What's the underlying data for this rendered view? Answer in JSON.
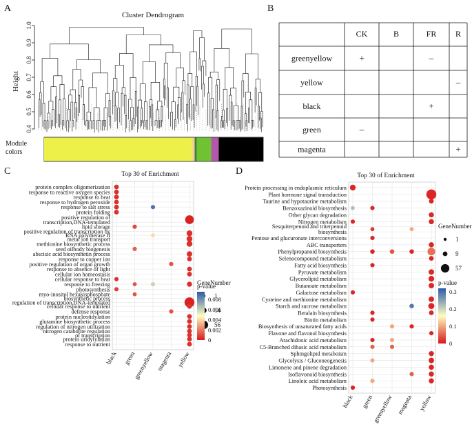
{
  "panel_a": {
    "letter": "A",
    "title": "Cluster Dendrogram",
    "ylabel": "Height",
    "yticks": [
      "0.4",
      "0.5",
      "0.6",
      "0.7",
      "0.8",
      "0.9",
      "1.0"
    ],
    "module_label": [
      "Module",
      "colors"
    ],
    "module_colors": [
      {
        "color": "#eef04a",
        "fraction": 0.675
      },
      {
        "color": "#f3d38a",
        "fraction": 0.012
      },
      {
        "color": "#3e7f3e",
        "fraction": 0.01
      },
      {
        "color": "#6fc232",
        "fraction": 0.065
      },
      {
        "color": "#b357a9",
        "fraction": 0.035
      },
      {
        "color": "#000000",
        "fraction": 0.203
      }
    ]
  },
  "panel_b": {
    "letter": "B",
    "columns": [
      "CK",
      "B",
      "FR",
      "R"
    ],
    "rows": [
      {
        "name": "greenyellow",
        "cells": [
          "+",
          "",
          "–",
          ""
        ]
      },
      {
        "name": "yellow",
        "cells": [
          "",
          "",
          "",
          "–"
        ]
      },
      {
        "name": "black",
        "cells": [
          "",
          "",
          "+",
          ""
        ]
      },
      {
        "name": "green",
        "cells": [
          "–",
          "",
          "",
          ""
        ]
      },
      {
        "name": "magenta",
        "cells": [
          "",
          "",
          "",
          "+"
        ]
      }
    ]
  },
  "panel_c": {
    "letter": "C",
    "chart_data": {
      "type": "scatter",
      "title": "Top 30 of Enrichment",
      "categories": [
        "black",
        "green",
        "greenyellow",
        "magenta",
        "yellow"
      ],
      "terms": [
        "protein complex oligomerization",
        "response to reactive oxygen species",
        "response to heat",
        "response to hydrogen peroxide",
        "response to salt stress",
        "protein folding",
        "positive regulation of",
        "transcription,DNA-templated",
        "lipid storage",
        "positive regulation of transcription by",
        "RNA polymerase II",
        "metal ion transport",
        "methionine biosynthetic process",
        "seed oilbody biogenesis",
        "abscisic acid biosynthetin process",
        "response to copper ion",
        "positive regulation of organ growth",
        "response to absence of light",
        "cellular ion homeostasis",
        "cellular response to heat",
        "response to freezing",
        "photosynthesis",
        "myo-inositol hexakisphosphate",
        "biosynthetic process",
        "regulation of transcription,DNA-templated",
        "cellular response to nutrient",
        "defense response",
        "protein nucleotidylation",
        "glutamine biosynthetic process",
        "regulation of nitrogen utilization",
        "nitrogen catabolite regulation",
        "of transcription",
        "protein uridylylation",
        "response to nutrient"
      ],
      "term_positions": [
        0,
        1,
        2,
        3,
        4,
        5,
        6,
        7,
        7.9,
        8.8,
        9.6,
        10.3,
        11.3,
        12.3,
        13.3,
        14.3,
        15.3,
        16.3,
        17.3,
        18.3,
        19.3,
        20.3,
        21.3,
        22.1,
        22.9,
        23.7,
        24.7,
        25.7,
        26.7,
        27.7,
        28.6,
        29.4,
        30.2,
        31.2
      ],
      "points": [
        {
          "t": 0,
          "c": 0,
          "n": 6,
          "p": 0.0005
        },
        {
          "t": 1,
          "c": 0,
          "n": 6,
          "p": 0.0005
        },
        {
          "t": 2,
          "c": 0,
          "n": 6,
          "p": 0.0005
        },
        {
          "t": 3,
          "c": 0,
          "n": 6,
          "p": 0.0005
        },
        {
          "t": 4,
          "c": 0,
          "n": 6,
          "p": 0.0005
        },
        {
          "t": 5,
          "c": 0,
          "n": 6,
          "p": 0.0005
        },
        {
          "t": 4,
          "c": 2,
          "n": 4,
          "p": 0.0088
        },
        {
          "t": 6.5,
          "c": 4,
          "n": 40,
          "p": 0.0002
        },
        {
          "t": 7.9,
          "c": 1,
          "n": 4,
          "p": 0.001
        },
        {
          "t": 9.2,
          "c": 4,
          "n": 12,
          "p": 0.0005
        },
        {
          "t": 9.6,
          "c": 2,
          "n": 3,
          "p": 0.004
        },
        {
          "t": 10.3,
          "c": 4,
          "n": 12,
          "p": 0.0005
        },
        {
          "t": 11.3,
          "c": 4,
          "n": 12,
          "p": 0.0005
        },
        {
          "t": 12.3,
          "c": 1,
          "n": 4,
          "p": 0.0015
        },
        {
          "t": 13.3,
          "c": 4,
          "n": 10,
          "p": 0.0005
        },
        {
          "t": 14.3,
          "c": 4,
          "n": 6,
          "p": 0.0005
        },
        {
          "t": 15.3,
          "c": 3,
          "n": 4,
          "p": 0.0012
        },
        {
          "t": 16.3,
          "c": 4,
          "n": 6,
          "p": 0.0005
        },
        {
          "t": 17.3,
          "c": 4,
          "n": 6,
          "p": 0.0005
        },
        {
          "t": 18.3,
          "c": 0,
          "n": 4,
          "p": 0.0005
        },
        {
          "t": 19.3,
          "c": 1,
          "n": 3,
          "p": 0.0012
        },
        {
          "t": 19.3,
          "c": 2,
          "n": 4,
          "p": 0.006
        },
        {
          "t": 19.3,
          "c": 4,
          "n": 8,
          "p": 0.0005
        },
        {
          "t": 20.3,
          "c": 0,
          "n": 4,
          "p": 0.0008
        },
        {
          "t": 21.3,
          "c": 1,
          "n": 3,
          "p": 0.0012
        },
        {
          "t": 22.9,
          "c": 4,
          "n": 56,
          "p": 0.0002
        },
        {
          "t": 23.7,
          "c": 4,
          "n": 6,
          "p": 0.0005
        },
        {
          "t": 24.7,
          "c": 3,
          "n": 4,
          "p": 0.0012
        },
        {
          "t": 25.7,
          "c": 4,
          "n": 6,
          "p": 0.0005
        },
        {
          "t": 26.7,
          "c": 4,
          "n": 6,
          "p": 0.0005
        },
        {
          "t": 27.7,
          "c": 4,
          "n": 6,
          "p": 0.0005
        },
        {
          "t": 28.6,
          "c": 4,
          "n": 6,
          "p": 0.0005
        },
        {
          "t": 29.4,
          "c": 4,
          "n": 6,
          "p": 0.0005
        },
        {
          "t": 30.2,
          "c": 4,
          "n": 6,
          "p": 0.0005
        },
        {
          "t": 31.2,
          "c": 4,
          "n": 6,
          "p": 0.0005
        }
      ],
      "size_legend": {
        "title": "GeneNumber",
        "values": [
          1,
          14,
          56
        ]
      },
      "color_legend": {
        "title": "p-value",
        "ticks": [
          "0.008",
          "0.006",
          "0.004",
          "0.002",
          "0"
        ],
        "range": [
          0,
          0.0095
        ]
      }
    }
  },
  "panel_d": {
    "letter": "D",
    "chart_data": {
      "type": "scatter",
      "title": "Top 30 of Enrichment",
      "categories": [
        "black",
        "green",
        "greenyellow",
        "magenta",
        "yellow"
      ],
      "terms": [
        "Protein processing in endoplasmic reticulum",
        "Plant hormone signal transduction",
        "Taurine and hypotaurine metabolism",
        "Benzoxazinoid biosynthesis",
        "Other glycan degradation",
        "Nitrogen metabolism",
        "Sesquiterpenoid and triterpenoid",
        "biosynthesis",
        "Pentose and glucuronate interconversions",
        "ABC transporters",
        "Phenylpropanoid biosynthesis",
        "Selenocompound metabolism",
        "Fatty acid biosynthesis",
        "Pyruvate metabolism",
        "Glycerolipid metabolism",
        "Butanoate metabolism",
        "Galactose metabolism",
        "Cysteine and methionine metabolism",
        "Starch and sucrose metabolism",
        "Betalain biosynthesis",
        "Biotin metabolism",
        "Biosynthesis of unsaturated fatty acids",
        "Flavone and flavonol biosynthesis",
        "Arachidonic acid metabolism",
        "C5-Branched dibasic acid metabolism",
        "Sphingolipid metaboism",
        "Glycolysis / Gluconeogenesis",
        "Limonene and pinene degradation",
        "Isoflavonoid biosynthesis",
        "Linoleic acid metabolism",
        "Photosynthesis"
      ],
      "term_positions": [
        0,
        1,
        2,
        3,
        4,
        5,
        5.7,
        6.5,
        7.4,
        8.4,
        9.4,
        10.4,
        11.4,
        12.4,
        13.4,
        14.4,
        15.4,
        16.4,
        17.4,
        18.4,
        19.4,
        20.4,
        21.4,
        22.4,
        23.4,
        24.4,
        25.4,
        26.4,
        27.4,
        28.4,
        29.4
      ],
      "points": [
        {
          "t": 0,
          "c": 0,
          "n": 12,
          "p": 0.01
        },
        {
          "t": 1,
          "c": 4,
          "n": 57,
          "p": 0.01
        },
        {
          "t": 2,
          "c": 4,
          "n": 6,
          "p": 0.01
        },
        {
          "t": 3,
          "c": 0,
          "n": 3,
          "p": 0.22
        },
        {
          "t": 3,
          "c": 1,
          "n": 4,
          "p": 0.01
        },
        {
          "t": 4,
          "c": 4,
          "n": 8,
          "p": 0.01
        },
        {
          "t": 5,
          "c": 0,
          "n": 4,
          "p": 0.01
        },
        {
          "t": 5,
          "c": 4,
          "n": 8,
          "p": 0.01
        },
        {
          "t": 6.1,
          "c": 1,
          "n": 3,
          "p": 0.02
        },
        {
          "t": 6.1,
          "c": 3,
          "n": 3,
          "p": 0.1
        },
        {
          "t": 7.4,
          "c": 1,
          "n": 4,
          "p": 0.01
        },
        {
          "t": 8.4,
          "c": 4,
          "n": 8,
          "p": 0.01
        },
        {
          "t": 9.4,
          "c": 1,
          "n": 5,
          "p": 0.01
        },
        {
          "t": 9.4,
          "c": 2,
          "n": 5,
          "p": 0.04
        },
        {
          "t": 9.4,
          "c": 3,
          "n": 5,
          "p": 0.01
        },
        {
          "t": 9.4,
          "c": 4,
          "n": 28,
          "p": 0.06
        },
        {
          "t": 10.4,
          "c": 4,
          "n": 6,
          "p": 0.01
        },
        {
          "t": 11.4,
          "c": 1,
          "n": 4,
          "p": 0.01
        },
        {
          "t": 12.4,
          "c": 4,
          "n": 10,
          "p": 0.01
        },
        {
          "t": 13.4,
          "c": 4,
          "n": 12,
          "p": 0.01
        },
        {
          "t": 14.4,
          "c": 4,
          "n": 10,
          "p": 0.01
        },
        {
          "t": 15.4,
          "c": 0,
          "n": 4,
          "p": 0.01
        },
        {
          "t": 16.4,
          "c": 4,
          "n": 10,
          "p": 0.01
        },
        {
          "t": 17.4,
          "c": 3,
          "n": 5,
          "p": 0.29
        },
        {
          "t": 17.4,
          "c": 4,
          "n": 14,
          "p": 0.01
        },
        {
          "t": 18.4,
          "c": 1,
          "n": 4,
          "p": 0.01
        },
        {
          "t": 18.4,
          "c": 4,
          "n": 6,
          "p": 0.01
        },
        {
          "t": 19.4,
          "c": 1,
          "n": 4,
          "p": 0.01
        },
        {
          "t": 20.4,
          "c": 2,
          "n": 4,
          "p": 0.1
        },
        {
          "t": 20.4,
          "c": 3,
          "n": 4,
          "p": 0.01
        },
        {
          "t": 21.4,
          "c": 4,
          "n": 4,
          "p": 0.01
        },
        {
          "t": 22.4,
          "c": 1,
          "n": 4,
          "p": 0.01
        },
        {
          "t": 22.4,
          "c": 2,
          "n": 4,
          "p": 0.1
        },
        {
          "t": 23.4,
          "c": 1,
          "n": 4,
          "p": 0.05
        },
        {
          "t": 23.4,
          "c": 2,
          "n": 4,
          "p": 0.05
        },
        {
          "t": 24.4,
          "c": 4,
          "n": 8,
          "p": 0.01
        },
        {
          "t": 25.4,
          "c": 1,
          "n": 4,
          "p": 0.1
        },
        {
          "t": 25.4,
          "c": 4,
          "n": 10,
          "p": 0.01
        },
        {
          "t": 26.4,
          "c": 4,
          "n": 8,
          "p": 0.01
        },
        {
          "t": 27.4,
          "c": 3,
          "n": 4,
          "p": 0.05
        },
        {
          "t": 27.4,
          "c": 4,
          "n": 8,
          "p": 0.01
        },
        {
          "t": 28.4,
          "c": 1,
          "n": 4,
          "p": 0.1
        },
        {
          "t": 28.4,
          "c": 4,
          "n": 8,
          "p": 0.01
        },
        {
          "t": 29.4,
          "c": 0,
          "n": 4,
          "p": 0.01
        }
      ],
      "size_legend": {
        "title": "GeneNumber",
        "values": [
          1,
          9,
          57
        ]
      },
      "color_legend": {
        "title": "p-value",
        "ticks": [
          "0.3",
          "0.2",
          "0.1",
          "0"
        ],
        "range": [
          0,
          0.32
        ]
      }
    }
  }
}
